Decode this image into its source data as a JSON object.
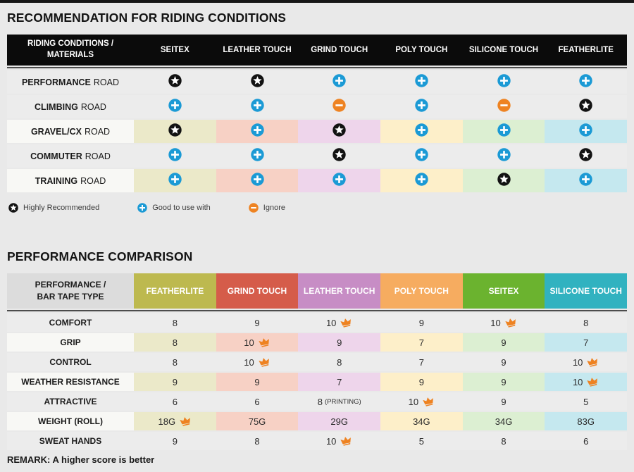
{
  "colors": {
    "page_bg": "#e9e9e9",
    "top_bar": "#161616",
    "table1_header_bg": "#0b0b0b",
    "row_gray": "#ececec",
    "row_label_light": "#f8f8f5",
    "header2_label_bg": "#dcdcdc",
    "divider": "#4c4c4c",
    "icon_star": "#121212",
    "icon_plus": "#1b9ad5",
    "icon_minus": "#ee8322",
    "crown": "#ee8221"
  },
  "table1": {
    "title": "RECOMMENDATION FOR RIDING CONDITIONS",
    "header": {
      "line1": "RIDING CONDITIONS /",
      "line2": "MATERIALS"
    },
    "columns": [
      {
        "label": "SEITEX",
        "light": "#ebe9c9"
      },
      {
        "label": "LEATHER TOUCH",
        "light": "#f7d1c5"
      },
      {
        "label": "GRIND TOUCH",
        "light": "#eed5eb"
      },
      {
        "label": "POLY TOUCH",
        "light": "#fdefc9"
      },
      {
        "label": "SILICONE TOUCH",
        "light": "#dcefd2"
      },
      {
        "label": "FEATHERLITE",
        "light": "#c5e8ef"
      }
    ],
    "rows": [
      {
        "label_bold": "PERFORMANCE",
        "label_rest": "ROAD",
        "colored": false,
        "cells": [
          "star",
          "star",
          "plus",
          "plus",
          "plus",
          "plus"
        ]
      },
      {
        "label_bold": "CLIMBING",
        "label_rest": "ROAD",
        "colored": false,
        "cells": [
          "plus",
          "plus",
          "minus",
          "plus",
          "minus",
          "star"
        ]
      },
      {
        "label_bold": "GRAVEL/CX",
        "label_rest": "ROAD",
        "colored": true,
        "cells": [
          "star",
          "plus",
          "star",
          "plus",
          "plus",
          "plus"
        ]
      },
      {
        "label_bold": "COMMUTER",
        "label_rest": "ROAD",
        "colored": false,
        "cells": [
          "plus",
          "plus",
          "star",
          "plus",
          "plus",
          "star"
        ]
      },
      {
        "label_bold": "TRAINING",
        "label_rest": "ROAD",
        "colored": true,
        "cells": [
          "plus",
          "plus",
          "plus",
          "plus",
          "star",
          "plus"
        ]
      }
    ],
    "legend": [
      {
        "icon": "star",
        "label": "Highly Recommended"
      },
      {
        "icon": "plus",
        "label": "Good to use with"
      },
      {
        "icon": "minus",
        "label": "Ignore"
      }
    ]
  },
  "table2": {
    "title": "PERFORMANCE COMPARISON",
    "header": {
      "line1": "PERFORMANCE /",
      "line2": "BAR TAPE TYPE"
    },
    "columns": [
      {
        "label": "FEATHERLITE",
        "color": "#bdb94f",
        "light": "#ebe9c9"
      },
      {
        "label": "GRIND TOUCH",
        "color": "#d55c4a",
        "light": "#f7d1c5"
      },
      {
        "label": "LEATHER TOUCH",
        "color": "#c78dc5",
        "light": "#eed5eb"
      },
      {
        "label": "POLY TOUCH",
        "color": "#f6ac60",
        "light": "#fdefc9"
      },
      {
        "label": "SEITEX",
        "color": "#6bb32f",
        "light": "#dcefd2"
      },
      {
        "label": "SILICONE TOUCH",
        "color": "#31b2c0",
        "light": "#c5e8ef"
      }
    ],
    "rows": [
      {
        "label": "COMFORT",
        "colored": false,
        "cells": [
          {
            "value": "8"
          },
          {
            "value": "9"
          },
          {
            "value": "10",
            "crown": true
          },
          {
            "value": "9"
          },
          {
            "value": "10",
            "crown": true
          },
          {
            "value": "8"
          }
        ]
      },
      {
        "label": "GRIP",
        "colored": true,
        "cells": [
          {
            "value": "8"
          },
          {
            "value": "10",
            "crown": true
          },
          {
            "value": "9"
          },
          {
            "value": "7"
          },
          {
            "value": "9"
          },
          {
            "value": "7"
          }
        ]
      },
      {
        "label": "CONTROL",
        "colored": false,
        "cells": [
          {
            "value": "8"
          },
          {
            "value": "10",
            "crown": true
          },
          {
            "value": "8"
          },
          {
            "value": "7"
          },
          {
            "value": "9"
          },
          {
            "value": "10",
            "crown": true
          }
        ]
      },
      {
        "label": "WEATHER RESISTANCE",
        "colored": true,
        "cells": [
          {
            "value": "9"
          },
          {
            "value": "9"
          },
          {
            "value": "7"
          },
          {
            "value": "9"
          },
          {
            "value": "9"
          },
          {
            "value": "10",
            "crown": true
          }
        ]
      },
      {
        "label": "ATTRACTIVE",
        "colored": false,
        "cells": [
          {
            "value": "6"
          },
          {
            "value": "6"
          },
          {
            "value": "8",
            "suffix": "(PRINTING)"
          },
          {
            "value": "10",
            "crown": true
          },
          {
            "value": "9"
          },
          {
            "value": "5"
          }
        ]
      },
      {
        "label": "WEIGHT (ROLL)",
        "colored": true,
        "cells": [
          {
            "value": "18G",
            "crown": true
          },
          {
            "value": "75G"
          },
          {
            "value": "29G"
          },
          {
            "value": "34G"
          },
          {
            "value": "34G"
          },
          {
            "value": "83G"
          }
        ]
      },
      {
        "label": "SWEAT HANDS",
        "colored": false,
        "cells": [
          {
            "value": "9"
          },
          {
            "value": "8"
          },
          {
            "value": "10",
            "crown": true
          },
          {
            "value": "5"
          },
          {
            "value": "8"
          },
          {
            "value": "6"
          }
        ]
      }
    ],
    "remark": "REMARK: A higher score is better"
  },
  "chart_data": [
    {
      "type": "table",
      "title": "RECOMMENDATION FOR RIDING CONDITIONS",
      "columns": [
        "RIDING CONDITIONS / MATERIALS",
        "SEITEX",
        "LEATHER TOUCH",
        "GRIND TOUCH",
        "POLY TOUCH",
        "SILICONE TOUCH",
        "FEATHERLITE"
      ],
      "rows": [
        [
          "PERFORMANCE ROAD",
          "highly-recommended",
          "highly-recommended",
          "good-to-use-with",
          "good-to-use-with",
          "good-to-use-with",
          "good-to-use-with"
        ],
        [
          "CLIMBING ROAD",
          "good-to-use-with",
          "good-to-use-with",
          "ignore",
          "good-to-use-with",
          "ignore",
          "highly-recommended"
        ],
        [
          "GRAVEL/CX ROAD",
          "highly-recommended",
          "good-to-use-with",
          "highly-recommended",
          "good-to-use-with",
          "good-to-use-with",
          "good-to-use-with"
        ],
        [
          "COMMUTER ROAD",
          "good-to-use-with",
          "good-to-use-with",
          "highly-recommended",
          "good-to-use-with",
          "good-to-use-with",
          "highly-recommended"
        ],
        [
          "TRAINING ROAD",
          "good-to-use-with",
          "good-to-use-with",
          "good-to-use-with",
          "good-to-use-with",
          "highly-recommended",
          "good-to-use-with"
        ]
      ],
      "legend": [
        "Highly Recommended",
        "Good to use with",
        "Ignore"
      ]
    },
    {
      "type": "table",
      "title": "PERFORMANCE COMPARISON",
      "columns": [
        "PERFORMANCE / BAR TAPE TYPE",
        "FEATHERLITE",
        "GRIND TOUCH",
        "LEATHER TOUCH",
        "POLY TOUCH",
        "SEITEX",
        "SILICONE TOUCH"
      ],
      "rows": [
        [
          "COMFORT",
          "8",
          "9",
          "10 (best)",
          "9",
          "10 (best)",
          "8"
        ],
        [
          "GRIP",
          "8",
          "10 (best)",
          "9",
          "7",
          "9",
          "7"
        ],
        [
          "CONTROL",
          "8",
          "10 (best)",
          "8",
          "7",
          "9",
          "10 (best)"
        ],
        [
          "WEATHER RESISTANCE",
          "9",
          "9",
          "7",
          "9",
          "9",
          "10 (best)"
        ],
        [
          "ATTRACTIVE",
          "6",
          "6",
          "8 (PRINTING)",
          "10 (best)",
          "9",
          "5"
        ],
        [
          "WEIGHT (ROLL)",
          "18G (best)",
          "75G",
          "29G",
          "34G",
          "34G",
          "83G"
        ],
        [
          "SWEAT HANDS",
          "9",
          "8",
          "10 (best)",
          "5",
          "8",
          "6"
        ]
      ],
      "remark": "REMARK: A higher score is better"
    }
  ]
}
